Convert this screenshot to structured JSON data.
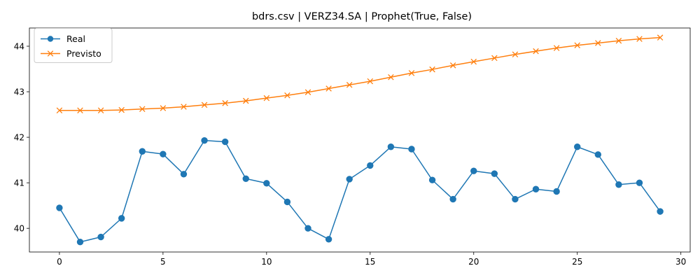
{
  "chart_data": {
    "type": "line",
    "title": "bdrs.csv | VERZ34.SA | Prophet(True, False)",
    "xlabel": "",
    "ylabel": "",
    "xlim": [
      -1.45,
      30.45
    ],
    "ylim": [
      39.48,
      44.4
    ],
    "xticks": [
      0,
      5,
      10,
      15,
      20,
      25,
      30
    ],
    "yticks": [
      40,
      41,
      42,
      43,
      44
    ],
    "grid": false,
    "legend_position": "upper left",
    "x": [
      0,
      1,
      2,
      3,
      4,
      5,
      6,
      7,
      8,
      9,
      10,
      11,
      12,
      13,
      14,
      15,
      16,
      17,
      18,
      19,
      20,
      21,
      22,
      23,
      24,
      25,
      26,
      27,
      28,
      29
    ],
    "series": [
      {
        "name": "Real",
        "color": "#1f77b4",
        "marker": "circle",
        "values": [
          40.45,
          39.7,
          39.81,
          40.22,
          41.69,
          41.63,
          41.19,
          41.93,
          41.9,
          41.09,
          40.99,
          40.58,
          40.0,
          39.76,
          41.08,
          41.38,
          41.79,
          41.74,
          41.06,
          40.64,
          41.26,
          41.2,
          40.64,
          40.86,
          40.81,
          41.79,
          41.62,
          40.96,
          41.0,
          40.37
        ]
      },
      {
        "name": "Previsto",
        "color": "#ff7f0e",
        "marker": "x",
        "values": [
          42.59,
          42.59,
          42.59,
          42.6,
          42.62,
          42.64,
          42.67,
          42.71,
          42.75,
          42.8,
          42.86,
          42.92,
          42.99,
          43.07,
          43.15,
          43.23,
          43.32,
          43.41,
          43.49,
          43.58,
          43.66,
          43.74,
          43.82,
          43.89,
          43.96,
          44.02,
          44.07,
          44.12,
          44.16,
          44.19
        ]
      }
    ]
  }
}
